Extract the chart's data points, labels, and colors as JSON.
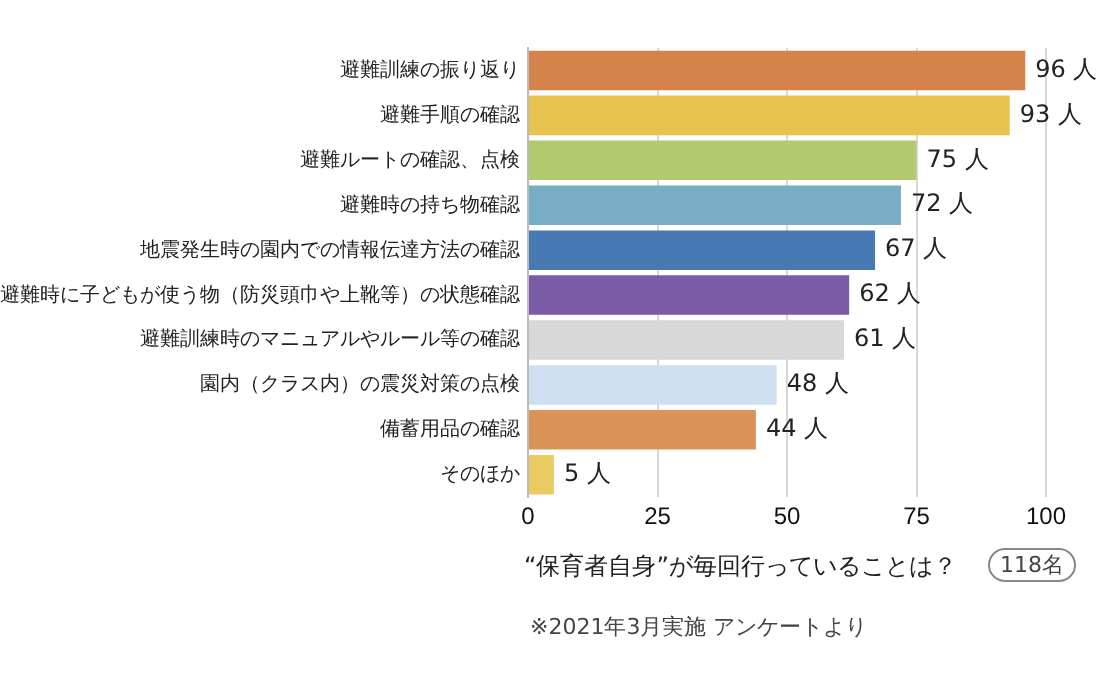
{
  "chart_data": {
    "type": "bar",
    "orientation": "horizontal",
    "categories": [
      "避難訓練の振り返り",
      "避難手順の確認",
      "避難ルートの確認、点検",
      "避難時の持ち物確認",
      "地震発生時の園内での情報伝達方法の確認",
      "避難時に子どもが使う物（防災頭巾や上靴等）の状態確認",
      "避難訓練時のマニュアルやルール等の確認",
      "園内（クラス内）の震災対策の点検",
      "備蓄用品の確認",
      "そのほか"
    ],
    "values": [
      96,
      93,
      75,
      72,
      67,
      62,
      61,
      48,
      44,
      5
    ],
    "value_labels": [
      "96 人",
      "93 人",
      "75 人",
      "72 人",
      "67 人",
      "62 人",
      "61 人",
      "48 人",
      "44 人",
      "5 人"
    ],
    "colors": [
      "#d4834a",
      "#e8c24e",
      "#b3c96e",
      "#78aec4",
      "#4779b2",
      "#7b5aa6",
      "#d9d8d8",
      "#cddff0",
      "#dc935a",
      "#eacb62"
    ],
    "xlim": [
      0,
      100
    ],
    "xticks": [
      0,
      25,
      50,
      75,
      100
    ],
    "grid": "x",
    "xlabel": "“保育者自身”が毎回行っていることは？",
    "annotations": [
      "118名",
      "※2021年3月実施 アンケートより"
    ]
  }
}
